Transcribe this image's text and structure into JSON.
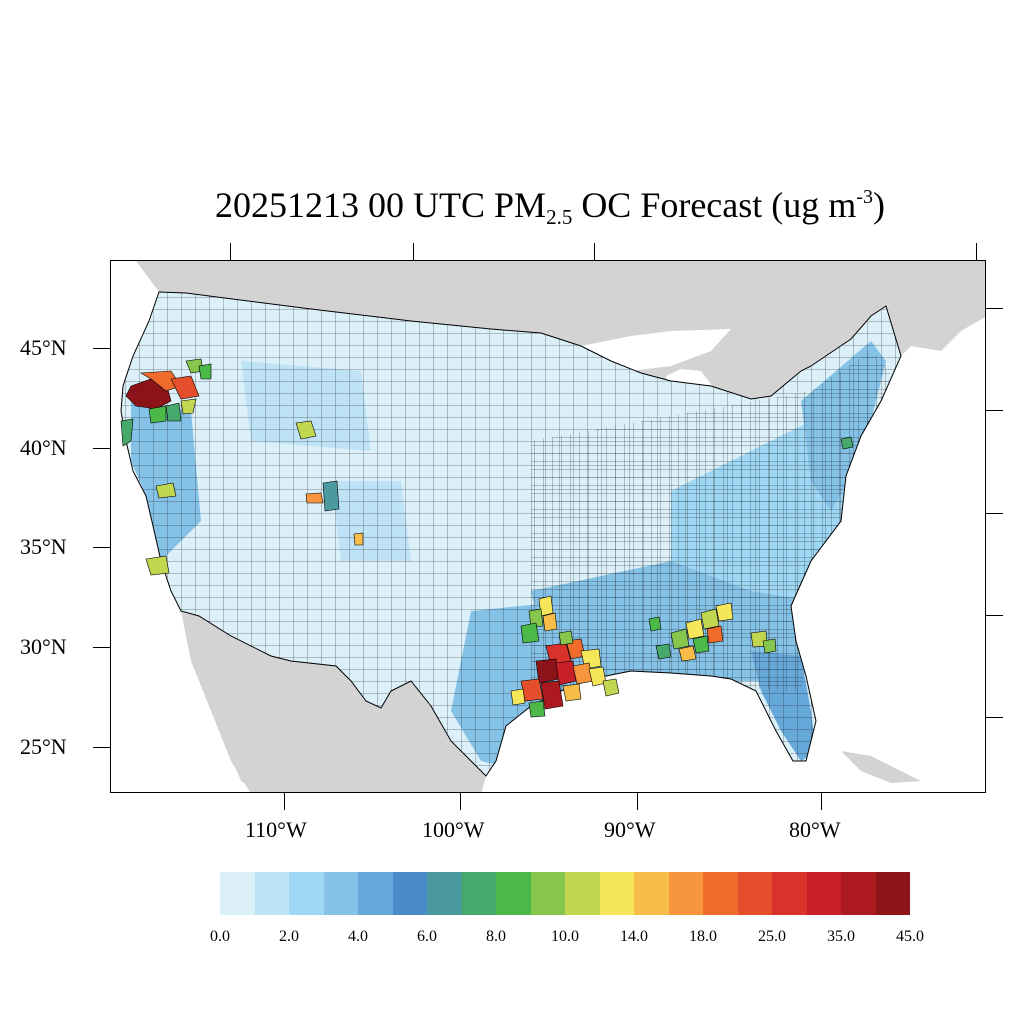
{
  "title": {
    "prefix": "20251213 00 UTC PM",
    "subscript": "2.5",
    "middle": " OC Forecast (ug m",
    "superscript": "-3",
    "suffix": ")"
  },
  "map": {
    "land_color": "#d3d3d3",
    "water_color": "#ffffff",
    "county_outline_color": "#000000",
    "lat_labels": [
      "45°N",
      "40°N",
      "35°N",
      "30°N",
      "25°N"
    ],
    "lon_labels": [
      "110°W",
      "100°W",
      "90°W",
      "80°W"
    ],
    "hotspots": [
      {
        "region": "Oregon",
        "max_class": "45.0+"
      },
      {
        "region": "Southeast Texas",
        "max_class": "45.0+"
      },
      {
        "region": "Alabama/Georgia",
        "max_class": "18.0-25.0"
      },
      {
        "region": "Central Texas",
        "max_class": "14.0-18.0"
      }
    ]
  },
  "colorbar": {
    "colors": [
      "#dcf0fa",
      "#bfe3f6",
      "#9fd8f5",
      "#85c2e8",
      "#67a8db",
      "#4a8ac8",
      "#4a9aa0",
      "#46a86a",
      "#4cb848",
      "#86c64c",
      "#c2d650",
      "#f5e65a",
      "#f7bd48",
      "#f7963c",
      "#f16b2c",
      "#e44e2a",
      "#d8322a",
      "#c82028",
      "#ac1a20",
      "#8c1418"
    ],
    "labels": [
      "0.0",
      "2.0",
      "4.0",
      "6.0",
      "8.0",
      "10.0",
      "14.0",
      "18.0",
      "25.0",
      "35.0",
      "45.0"
    ]
  }
}
